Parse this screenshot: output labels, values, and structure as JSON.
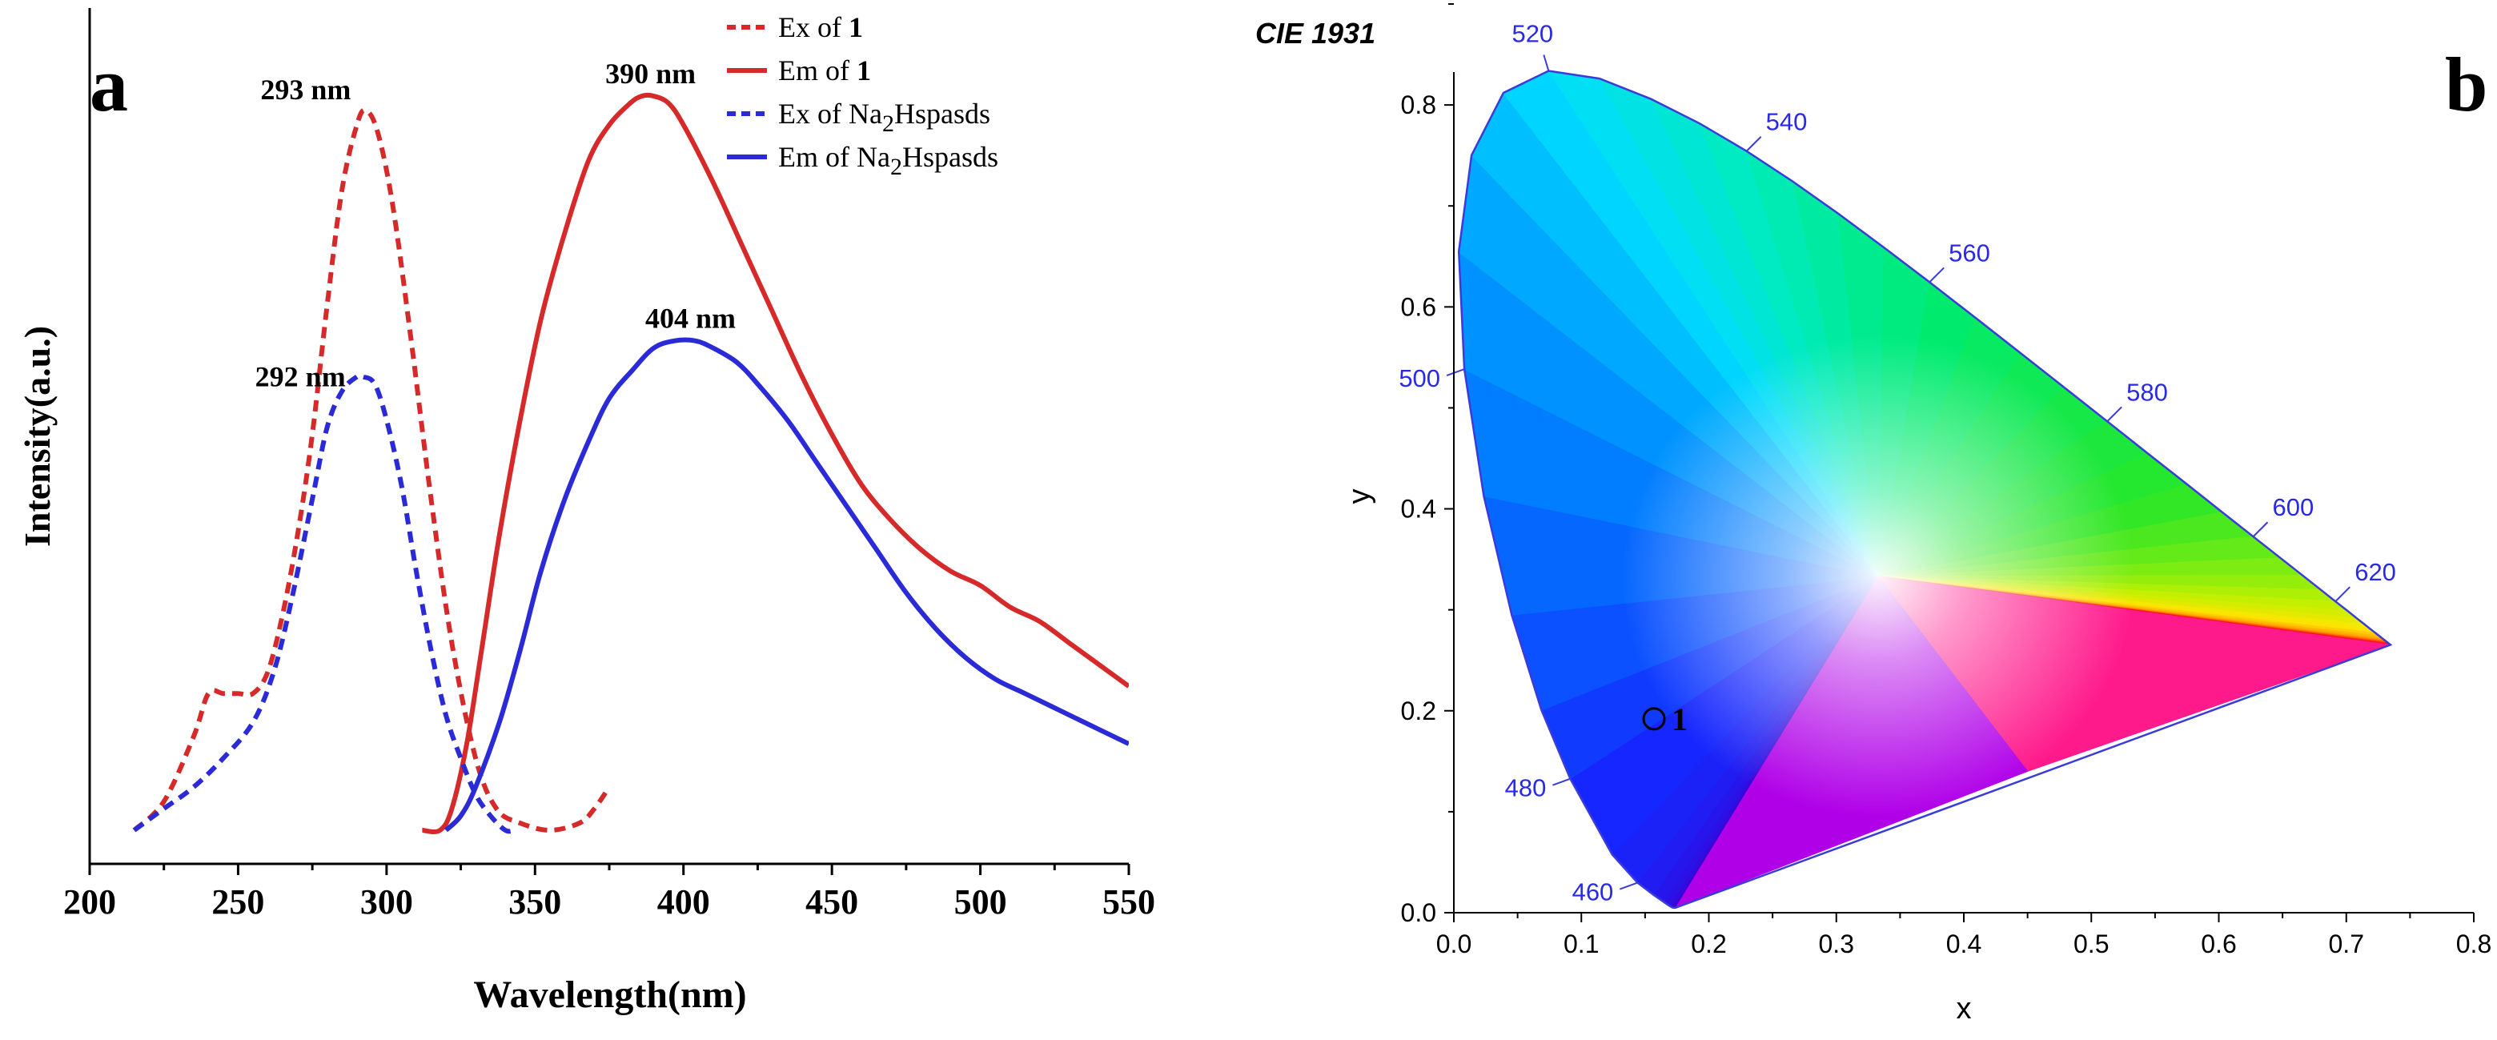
{
  "chart_data": [
    {
      "type": "line",
      "panel_label": "a",
      "xlabel": "Wavelength(nm)",
      "ylabel": "Intensity(a.u.)",
      "xlim": [
        200,
        550
      ],
      "ylim": [
        0,
        1.05
      ],
      "xticks": [
        "200",
        "250",
        "300",
        "350",
        "400",
        "450",
        "500",
        "550"
      ],
      "yticks_shown": false,
      "series": [
        {
          "name": "Ex of 1",
          "legend_prefix": "Ex of ",
          "legend_bold": "1",
          "color": "#d62a2a",
          "dash": true,
          "x": [
            215,
            225,
            235,
            240,
            245,
            250,
            255,
            260,
            265,
            270,
            275,
            280,
            285,
            290,
            293,
            297,
            302,
            308,
            315,
            322,
            330,
            337,
            345,
            355,
            365,
            370,
            375
          ],
          "y": [
            0.02,
            0.06,
            0.15,
            0.21,
            0.21,
            0.21,
            0.21,
            0.24,
            0.32,
            0.43,
            0.57,
            0.75,
            0.91,
            1.0,
            1.02,
            0.99,
            0.89,
            0.71,
            0.48,
            0.28,
            0.12,
            0.05,
            0.03,
            0.02,
            0.03,
            0.05,
            0.08
          ]
        },
        {
          "name": "Em of 1",
          "legend_prefix": "Em of ",
          "legend_bold": "1",
          "color": "#d62a2a",
          "dash": false,
          "x": [
            312,
            318,
            322,
            327,
            332,
            338,
            345,
            352,
            360,
            368,
            375,
            382,
            386,
            390,
            395,
            400,
            410,
            420,
            430,
            440,
            450,
            460,
            470,
            480,
            490,
            500,
            510,
            520,
            530,
            540,
            550
          ],
          "y": [
            0.02,
            0.02,
            0.05,
            0.14,
            0.27,
            0.43,
            0.59,
            0.73,
            0.85,
            0.95,
            1.0,
            1.03,
            1.04,
            1.04,
            1.03,
            1.0,
            0.92,
            0.83,
            0.74,
            0.65,
            0.57,
            0.5,
            0.45,
            0.41,
            0.38,
            0.36,
            0.33,
            0.31,
            0.28,
            0.25,
            0.22
          ]
        },
        {
          "name": "Ex of Na2Hspasds",
          "legend_prefix": "Ex of Na",
          "legend_sub": "2",
          "legend_suffix": "Hspasds",
          "color": "#2a2ad6",
          "dash": true,
          "x": [
            215,
            225,
            235,
            245,
            255,
            262,
            268,
            275,
            280,
            285,
            290,
            292,
            296,
            300,
            305,
            310,
            315,
            320,
            325,
            330,
            335,
            340,
            343
          ],
          "y": [
            0.02,
            0.05,
            0.08,
            0.12,
            0.17,
            0.24,
            0.34,
            0.48,
            0.58,
            0.63,
            0.65,
            0.65,
            0.64,
            0.59,
            0.5,
            0.38,
            0.27,
            0.18,
            0.12,
            0.07,
            0.04,
            0.02,
            0.02
          ]
        },
        {
          "name": "Em of Na2Hspasds",
          "legend_prefix": "Em of Na",
          "legend_sub": "2",
          "legend_suffix": "Hspasds",
          "color": "#2a2ad6",
          "dash": false,
          "x": [
            320,
            325,
            330,
            338,
            345,
            352,
            360,
            368,
            375,
            383,
            390,
            397,
            404,
            410,
            418,
            425,
            435,
            445,
            455,
            465,
            475,
            485,
            495,
            505,
            515,
            530,
            540,
            550
          ],
          "y": [
            0.02,
            0.04,
            0.08,
            0.17,
            0.27,
            0.38,
            0.48,
            0.56,
            0.62,
            0.66,
            0.69,
            0.7,
            0.7,
            0.69,
            0.67,
            0.64,
            0.59,
            0.53,
            0.47,
            0.41,
            0.35,
            0.3,
            0.26,
            0.23,
            0.21,
            0.18,
            0.16,
            0.14
          ]
        }
      ],
      "annotations": [
        {
          "text": "293 nm",
          "x": 293,
          "y": 1.02
        },
        {
          "text": "390 nm",
          "x": 390,
          "y": 1.04
        },
        {
          "text": "292 nm",
          "x": 292,
          "y": 0.65
        },
        {
          "text": "404 nm",
          "x": 404,
          "y": 0.7
        }
      ]
    },
    {
      "type": "scatter",
      "panel_label": "b",
      "title": "CIE 1931",
      "xlabel": "x",
      "ylabel": "y",
      "xlim": [
        0.0,
        0.8
      ],
      "ylim": [
        0.0,
        0.9
      ],
      "xticks": [
        "0.0",
        "0.1",
        "0.2",
        "0.3",
        "0.4",
        "0.5",
        "0.6",
        "0.7",
        "0.8"
      ],
      "yticks": [
        "0.0",
        "0.2",
        "0.4",
        "0.6",
        "0.8"
      ],
      "locus": {
        "x": [
          0.1741,
          0.1726,
          0.1714,
          0.1689,
          0.1644,
          0.1566,
          0.144,
          0.1241,
          0.0913,
          0.0687,
          0.0454,
          0.0235,
          0.0082,
          0.0039,
          0.0139,
          0.0389,
          0.0743,
          0.1142,
          0.1547,
          0.1929,
          0.2296,
          0.2658,
          0.3016,
          0.3373,
          0.3731,
          0.4087,
          0.4441,
          0.4788,
          0.5125,
          0.5448,
          0.5752,
          0.6029,
          0.627,
          0.6482,
          0.6658,
          0.6801,
          0.6915,
          0.7006,
          0.7079,
          0.714,
          0.719,
          0.723,
          0.726,
          0.7283,
          0.73,
          0.7311,
          0.732,
          0.7327,
          0.7334,
          0.734,
          0.7344,
          0.7346,
          0.7347
        ],
        "y": [
          0.005,
          0.0048,
          0.0051,
          0.0069,
          0.0109,
          0.0177,
          0.0297,
          0.0578,
          0.1327,
          0.2007,
          0.295,
          0.4127,
          0.5384,
          0.6548,
          0.7502,
          0.812,
          0.8338,
          0.8262,
          0.8059,
          0.7816,
          0.7543,
          0.7243,
          0.6923,
          0.6589,
          0.6245,
          0.5896,
          0.5547,
          0.5202,
          0.4866,
          0.4544,
          0.4242,
          0.3965,
          0.3725,
          0.3514,
          0.334,
          0.3197,
          0.3083,
          0.2993,
          0.292,
          0.2859,
          0.2809,
          0.277,
          0.274,
          0.2717,
          0.27,
          0.2689,
          0.268,
          0.2673,
          0.2666,
          0.266,
          0.2656,
          0.2654,
          0.2653
        ]
      },
      "wavelength_labels": [
        {
          "text": "460",
          "x": 0.144,
          "y": 0.0297,
          "dir": "left"
        },
        {
          "text": "480",
          "x": 0.0913,
          "y": 0.1327,
          "dir": "left"
        },
        {
          "text": "500",
          "x": 0.0082,
          "y": 0.5384,
          "dir": "left"
        },
        {
          "text": "520",
          "x": 0.0743,
          "y": 0.8338,
          "dir": "up"
        },
        {
          "text": "540",
          "x": 0.2296,
          "y": 0.7543,
          "dir": "upright"
        },
        {
          "text": "560",
          "x": 0.3731,
          "y": 0.6245,
          "dir": "upright"
        },
        {
          "text": "580",
          "x": 0.5125,
          "y": 0.4866,
          "dir": "upright"
        },
        {
          "text": "600",
          "x": 0.627,
          "y": 0.3725,
          "dir": "upright"
        },
        {
          "text": "620",
          "x": 0.6915,
          "y": 0.3083,
          "dir": "upright"
        }
      ],
      "points": [
        {
          "label": "1",
          "x": 0.157,
          "y": 0.192
        }
      ]
    }
  ]
}
